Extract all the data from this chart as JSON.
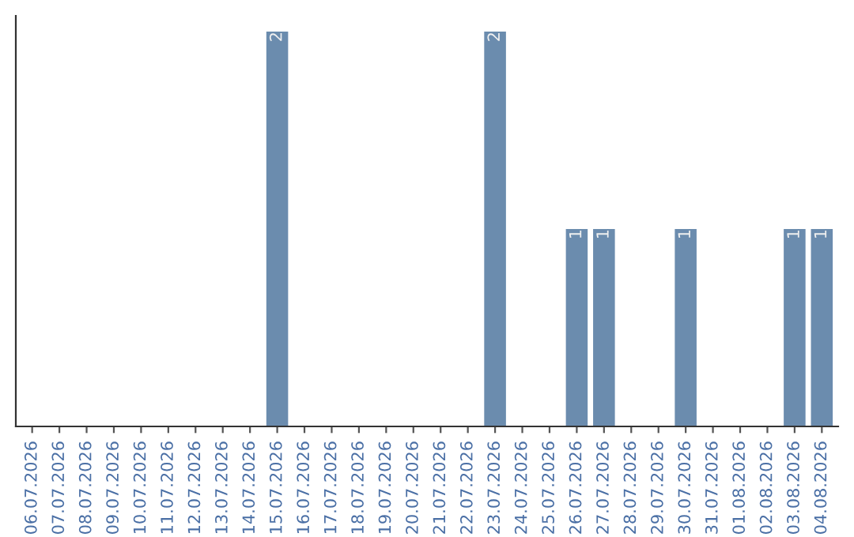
{
  "chart_data": {
    "type": "bar",
    "categories": [
      "06.07.2026",
      "07.07.2026",
      "08.07.2026",
      "09.07.2026",
      "10.07.2026",
      "11.07.2026",
      "12.07.2026",
      "13.07.2026",
      "14.07.2026",
      "15.07.2026",
      "16.07.2026",
      "17.07.2026",
      "18.07.2026",
      "19.07.2026",
      "20.07.2026",
      "21.07.2026",
      "22.07.2026",
      "23.07.2026",
      "24.07.2026",
      "25.07.2026",
      "26.07.2026",
      "27.07.2026",
      "28.07.2026",
      "29.07.2026",
      "30.07.2026",
      "31.07.2026",
      "01.08.2026",
      "02.08.2026",
      "03.08.2026",
      "04.08.2026"
    ],
    "values": [
      0,
      0,
      0,
      0,
      0,
      0,
      0,
      0,
      0,
      2,
      0,
      0,
      0,
      0,
      0,
      0,
      0,
      2,
      0,
      0,
      1,
      1,
      0,
      0,
      1,
      0,
      0,
      0,
      1,
      1
    ],
    "value_labels": [
      null,
      null,
      null,
      null,
      null,
      null,
      null,
      null,
      null,
      "2",
      null,
      null,
      null,
      null,
      null,
      null,
      null,
      "2",
      null,
      null,
      "1",
      "1",
      null,
      null,
      "1",
      null,
      null,
      null,
      "1",
      "1"
    ],
    "color": "#6b8cae",
    "ylim": [
      0,
      2.08
    ],
    "tick_labels": "x",
    "grid": false,
    "legend": false
  }
}
